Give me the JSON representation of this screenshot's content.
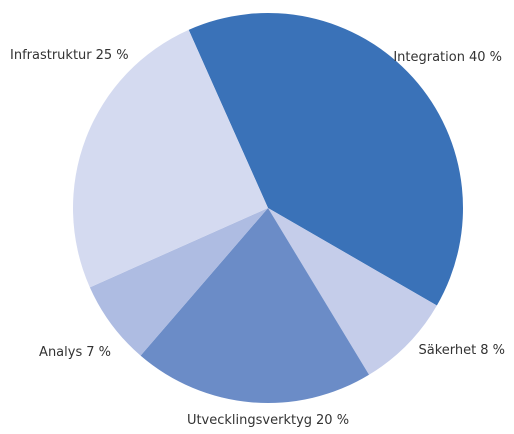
{
  "chart_data": {
    "type": "pie",
    "categories": [
      "Integration",
      "Säkerhet",
      "Utvecklingsverktyg",
      "Analys",
      "Infrastruktur"
    ],
    "values": [
      40,
      8,
      20,
      7,
      25
    ],
    "value_labels": [
      "40 %",
      "8 %",
      "20 %",
      "7 %",
      "25 %"
    ],
    "colors": [
      "#3a72b8",
      "#c5cdea",
      "#6b8cc7",
      "#aebce2",
      "#d4daf0"
    ]
  }
}
